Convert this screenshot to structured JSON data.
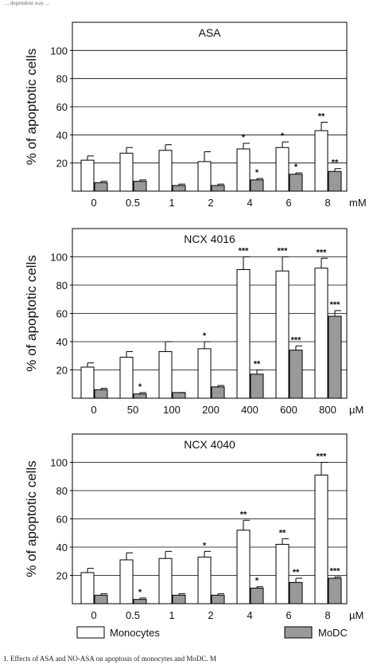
{
  "caption_top": "... dependent way ...",
  "caption_bottom": "1. Effects of ASA and NO-ASA on apoptosis of monocytes and MoDC. M",
  "y_axis_label": "% of apoptotic cells",
  "legend": {
    "monocytes": "Monocytes",
    "modc": "MoDC"
  },
  "colors": {
    "monocytes_fill": "#ffffff",
    "modc_fill": "#999999",
    "stroke": "#000000"
  },
  "chart_data": [
    {
      "type": "bar",
      "title": "ASA",
      "unit": "mM",
      "categories": [
        "0",
        "0.5",
        "1",
        "2",
        "4",
        "6",
        "8"
      ],
      "ylim": [
        0,
        120
      ],
      "yticks": [
        "20",
        "40",
        "60",
        "80",
        "100"
      ],
      "grid": true,
      "series": [
        {
          "name": "Monocytes",
          "values": [
            22,
            27,
            29,
            21,
            30,
            31,
            43
          ],
          "errors": [
            3,
            4,
            4,
            7,
            4,
            4,
            6
          ],
          "sig": [
            "",
            "",
            "",
            "",
            "*",
            "*",
            "**"
          ]
        },
        {
          "name": "MoDC",
          "values": [
            6,
            7,
            4,
            4,
            8,
            12,
            14
          ],
          "errors": [
            1,
            1,
            1,
            1,
            1,
            1,
            2
          ],
          "sig": [
            "",
            "",
            "",
            "",
            "*",
            "*",
            "**"
          ]
        }
      ]
    },
    {
      "type": "bar",
      "title": "NCX 4016",
      "unit": "µM",
      "categories": [
        "0",
        "50",
        "100",
        "200",
        "400",
        "600",
        "800"
      ],
      "ylim": [
        0,
        120
      ],
      "yticks": [
        "20",
        "40",
        "60",
        "80",
        "100"
      ],
      "grid": true,
      "series": [
        {
          "name": "Monocytes",
          "values": [
            22,
            29,
            33,
            35,
            91,
            90,
            92
          ],
          "errors": [
            3,
            4,
            7,
            5,
            9,
            10,
            7
          ],
          "sig": [
            "",
            "",
            "",
            "*",
            "***",
            "***",
            "***"
          ]
        },
        {
          "name": "MoDC",
          "values": [
            6,
            3,
            4,
            8,
            17,
            34,
            58
          ],
          "errors": [
            1,
            1,
            0,
            1,
            3,
            3,
            4
          ],
          "sig": [
            "",
            "*",
            "",
            "",
            "**",
            "***",
            "***"
          ]
        }
      ]
    },
    {
      "type": "bar",
      "title": "NCX 4040",
      "unit": "µM",
      "categories": [
        "0",
        "0.5",
        "1",
        "2",
        "4",
        "6",
        "8"
      ],
      "ylim": [
        0,
        120
      ],
      "yticks": [
        "20",
        "40",
        "60",
        "80",
        "100"
      ],
      "grid": true,
      "series": [
        {
          "name": "Monocytes",
          "values": [
            22,
            31,
            32,
            33,
            52,
            42,
            91
          ],
          "errors": [
            3,
            5,
            5,
            4,
            7,
            4,
            9
          ],
          "sig": [
            "",
            "",
            "",
            "*",
            "**",
            "**",
            "***"
          ]
        },
        {
          "name": "MoDC",
          "values": [
            6,
            3,
            6,
            6,
            11,
            15,
            18
          ],
          "errors": [
            1,
            1,
            1,
            1,
            1,
            3,
            1
          ],
          "sig": [
            "",
            "*",
            "",
            "",
            "*",
            "**",
            "***"
          ]
        }
      ]
    }
  ]
}
